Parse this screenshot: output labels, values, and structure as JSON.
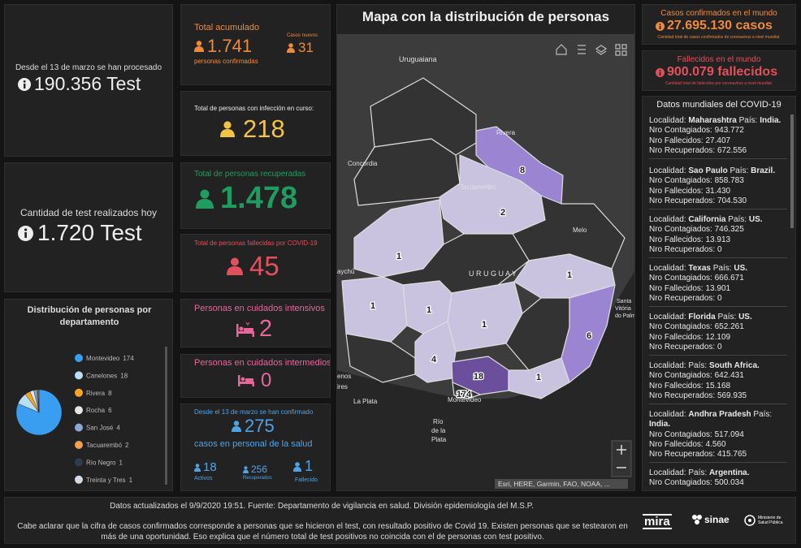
{
  "tests": {
    "label": "Desde el 13 de marzo se han procesado",
    "value": "190.356 Test"
  },
  "tests_today": {
    "label": "Cantidad de test realizados hoy",
    "value": "1.720 Test"
  },
  "distribution": {
    "title": "Distribución de personas por departamento",
    "categories": [
      "Montevideo",
      "Canelones",
      "Rivera",
      "Rocha",
      "San José",
      "Tacuarembó",
      "Río Negro",
      "Treinta y Tres"
    ],
    "values": [
      174,
      18,
      8,
      6,
      4,
      2,
      1,
      1
    ],
    "colors": [
      "#3a9ef0",
      "#b9def7",
      "#f5a623",
      "#e6e6e6",
      "#8aa9d6",
      "#f0a050",
      "#2f3d4d",
      "#d3dbe3"
    ]
  },
  "confirmed": {
    "label": "Total acumulado",
    "value": "1.741",
    "sub": "personas confirmadas",
    "new_label": "Casos nuevos",
    "new_value": "31"
  },
  "active": {
    "label": "Total de personas con infección en curso:",
    "value": "218"
  },
  "recovered": {
    "label": "Total de personas recuperadas",
    "value": "1.478"
  },
  "deceased": {
    "label": "Total de personas fallecidas por COVID-19",
    "value": "45"
  },
  "icu": {
    "label": "Personas en cuidados intensivos",
    "value": "2"
  },
  "intermediate": {
    "label": "Personas en cuidados intermedios",
    "value": "0"
  },
  "health_staff": {
    "label": "Desde el 13 de marzo se han confirmado",
    "value": "275",
    "sub": "casos en personal de la salud",
    "active_value": "18",
    "active_label": "Activos",
    "recovered_value": "256",
    "recovered_label": "Recuperados",
    "deceased_value": "1",
    "deceased_label": "Fallecido"
  },
  "map": {
    "title": "Mapa con la distribución de personas",
    "places": [
      "Uruguaiana",
      "Concordia",
      "Rivera",
      "Tacuarembó",
      "Melo",
      "U R U G U A Y",
      "aychú",
      "enos",
      "ires",
      "La Plata",
      "Montevideo",
      "Río",
      "de la",
      "Plata",
      "Santa",
      "Vitória",
      "do Palm"
    ],
    "counts": [
      "8",
      "2",
      "1",
      "1",
      "1",
      "1",
      "1",
      "6",
      "4",
      "18",
      "1",
      "174"
    ],
    "attribution": "Esri, HERE, Garmin, FAO, NOAA, ..."
  },
  "world_cases": {
    "label": "Casos confirmados en el mundo",
    "value": "27.695.130 casos",
    "note": "Cantidad total de casos confirmados de coronavirus a nivel mundial."
  },
  "world_deaths": {
    "label": "Fallecidos en el mundo",
    "value": "900.079 fallecidos",
    "note": "Cantidad total de fallecidos por coronavirus a nivel mundial."
  },
  "world_list": {
    "title": "Datos mundiales del COVID-19",
    "labels": {
      "locality": "Localidad:",
      "country": "País:",
      "cases": "Nro Contagiados:",
      "deaths": "Nro Fallecidos:",
      "recovered": "Nro Recuperados:"
    },
    "items": [
      {
        "locality": "Maharashtra",
        "country": "India.",
        "cases": "943.772",
        "deaths": "27.407",
        "recovered": "672.556"
      },
      {
        "locality": "Sao Paulo",
        "country": "Brazil.",
        "cases": "858.783",
        "deaths": "31.430",
        "recovered": "704.530"
      },
      {
        "locality": "California",
        "country": "US.",
        "cases": "746.325",
        "deaths": "13.913",
        "recovered": "0"
      },
      {
        "locality": "Texas",
        "country": "US.",
        "cases": "666.671",
        "deaths": "13.901",
        "recovered": "0"
      },
      {
        "locality": "Florida",
        "country": "US.",
        "cases": "652.261",
        "deaths": "12.109",
        "recovered": "0"
      },
      {
        "country": "South Africa.",
        "cases": "642.431",
        "deaths": "15.168",
        "recovered": "569.935"
      },
      {
        "locality": "Andhra Pradesh",
        "country": "India.",
        "cases": "517.094",
        "deaths": "4.560",
        "recovered": "415.765"
      },
      {
        "country": "Argentina.",
        "cases": "500.034"
      }
    ]
  },
  "footer": {
    "updated": "Datos actualizados el 9/9/2020 19:51. Fuente: Departamento de vigilancia en salud. División epidemiología del M.S.P.",
    "note": "Cabe aclarar que la cifra de casos confirmados corresponde a personas que se hicieron el test, con resultado positivo de Covid 19. Existen personas que se testearon en más de una oportunidad. Eso explica que el número total de test positivos no coincida con el de personas con test positivo.",
    "logos": [
      "mira",
      "sinae",
      "Ministerio de Salud Pública"
    ]
  }
}
